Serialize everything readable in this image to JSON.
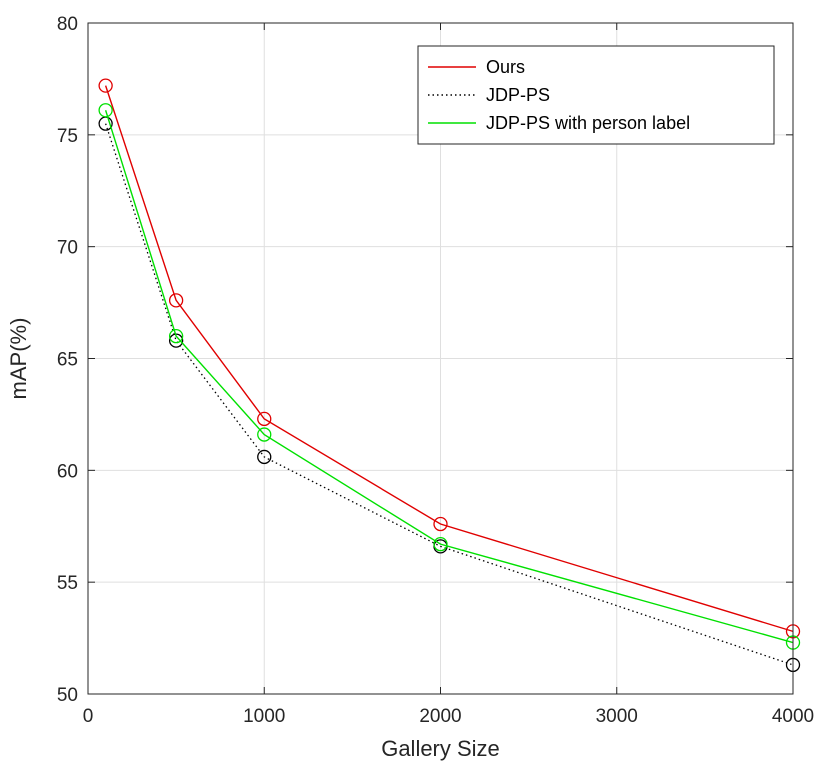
{
  "chart_data": {
    "type": "line",
    "title": "",
    "xlabel": "Gallery Size",
    "ylabel": "mAP(%)",
    "xlim": [
      0,
      4000
    ],
    "ylim": [
      50,
      80
    ],
    "xticks": [
      0,
      1000,
      2000,
      3000,
      4000
    ],
    "yticks": [
      50,
      55,
      60,
      65,
      70,
      75,
      80
    ],
    "grid": true,
    "legend_position": "top-right",
    "x": [
      100,
      500,
      1000,
      2000,
      4000
    ],
    "series": [
      {
        "name": "Ours",
        "values": [
          77.2,
          67.6,
          62.3,
          57.6,
          52.8
        ],
        "color": "#e00000",
        "line": "solid",
        "marker": "circle"
      },
      {
        "name": "JDP-PS",
        "values": [
          75.5,
          65.8,
          60.6,
          56.6,
          51.3
        ],
        "color": "#000000",
        "line": "dotted",
        "marker": "circle"
      },
      {
        "name": "JDP-PS with person label",
        "values": [
          76.1,
          66.0,
          61.6,
          56.7,
          52.3
        ],
        "color": "#00e000",
        "line": "solid",
        "marker": "circle"
      }
    ]
  }
}
